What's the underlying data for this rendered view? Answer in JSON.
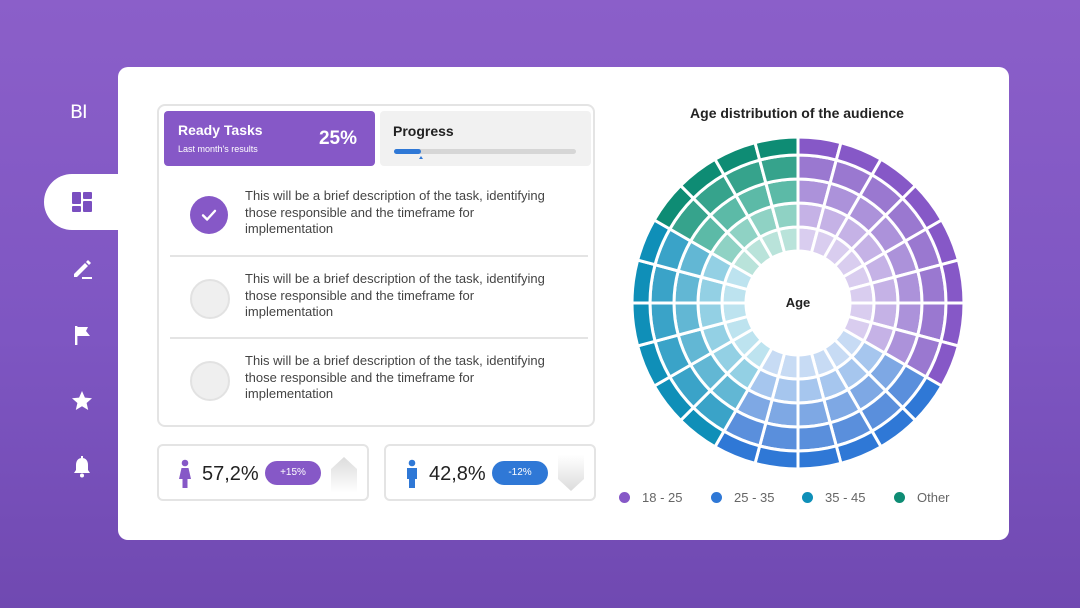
{
  "app": {
    "logo": "BI"
  },
  "nav": {
    "items": [
      {
        "name": "dashboard",
        "icon": "dashboard-icon",
        "active": true
      },
      {
        "name": "edit",
        "icon": "pencil-icon"
      },
      {
        "name": "flag",
        "icon": "flag-icon"
      },
      {
        "name": "favorites",
        "icon": "star-icon"
      },
      {
        "name": "notifications",
        "icon": "bell-icon"
      }
    ]
  },
  "ready_tasks": {
    "title": "Ready Tasks",
    "subtitle": "Last month's results",
    "percent": "25%"
  },
  "progress": {
    "title": "Progress",
    "value": 0.15
  },
  "tasks": [
    {
      "text": "This will be a brief description of the task, identifying those responsible and the timeframe for implementation",
      "done": true
    },
    {
      "text": "This will be a brief description of the task, identifying those responsible and the timeframe for implementation",
      "done": false
    },
    {
      "text": "This will be a brief description of the task, identifying those responsible and the timeframe for implementation",
      "done": false
    }
  ],
  "stats": [
    {
      "icon": "female-person-icon",
      "value": "57,2%",
      "badge": "+15%",
      "color": "#8658c7"
    },
    {
      "icon": "male-person-icon",
      "value": "42,8%",
      "badge": "-12%",
      "color": "#2f78d6"
    }
  ],
  "chart": {
    "title": "Age distribution of the audience",
    "center_label": "Age",
    "legend": [
      {
        "label": "18 - 25",
        "color": "#8658c7"
      },
      {
        "label": "25 - 35",
        "color": "#2f78d6"
      },
      {
        "label": "35 - 45",
        "color": "#0f8fb8"
      },
      {
        "label": "Other",
        "color": "#0e8c74"
      }
    ]
  },
  "chart_data": {
    "type": "pie",
    "title": "Age distribution of the audience",
    "categories": [
      "18 - 25",
      "25 - 35",
      "35 - 45",
      "Other"
    ],
    "values": [
      8,
      6,
      6,
      4
    ],
    "rings": 5,
    "center_label": "Age",
    "legend": "bottom"
  }
}
